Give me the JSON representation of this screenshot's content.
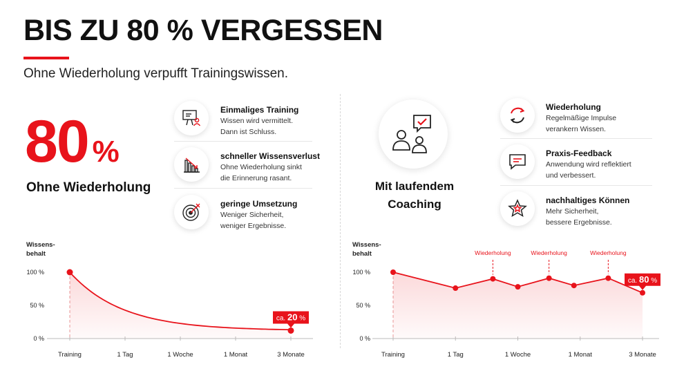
{
  "header": {
    "title": "BIS ZU 80 % VERGESSEN",
    "subtitle": "Ohne Wiederholung verpufft Trainingswissen."
  },
  "colors": {
    "accent": "#e8131b",
    "text": "#111111",
    "muted": "#333333"
  },
  "left": {
    "big_number": "80",
    "big_unit": "%",
    "caption": "Ohne Wiederholung",
    "features": [
      {
        "icon": "presentation-board-icon",
        "title": "Einmaliges Training",
        "desc": [
          "Wissen wird vermittelt.",
          "Dann ist Schluss."
        ]
      },
      {
        "icon": "declining-bar-chart-icon",
        "title": "schneller Wissensverlust",
        "desc": [
          "Ohne Wiederholung sinkt",
          "die Erinnerung rasant."
        ]
      },
      {
        "icon": "target-icon",
        "title": "geringe Umsetzung",
        "desc": [
          "Weniger Sicherheit,",
          "weniger Ergebnisse."
        ]
      }
    ]
  },
  "right": {
    "caption_lines": [
      "Mit laufendem",
      "Coaching"
    ],
    "features": [
      {
        "icon": "refresh-cycle-icon",
        "title": "Wiederholung",
        "desc": [
          "Regelmäßige Impulse",
          "verankern Wissen."
        ]
      },
      {
        "icon": "chat-bubble-icon",
        "title": "Praxis-Feedback",
        "desc": [
          "Anwendung wird reflektiert",
          "und verbessert."
        ]
      },
      {
        "icon": "star-badge-icon",
        "title": "nachhaltiges Können",
        "desc": [
          "Mehr Sicherheit,",
          "bessere Ergebnisse."
        ]
      }
    ]
  },
  "chart_data": [
    {
      "type": "area",
      "ylabel": "Wissens-\nbehalt",
      "yticks": [
        "100 %",
        "50 %",
        "0 %"
      ],
      "ylim": [
        0,
        100
      ],
      "categories": [
        "Training",
        "1 Tag",
        "1 Woche",
        "1 Monat",
        "3 Monate"
      ],
      "points": [
        [
          0,
          100
        ],
        [
          4,
          12
        ]
      ],
      "curve": "exponential-decay",
      "callout": {
        "prefix": "ca.",
        "value": "20",
        "unit": "%"
      }
    },
    {
      "type": "line",
      "ylabel": "Wissens-\nbehalt",
      "yticks": [
        "100 %",
        "50 %",
        "0 %"
      ],
      "ylim": [
        0,
        100
      ],
      "categories": [
        "Training",
        "1 Tag",
        "1 Woche",
        "1 Monat",
        "3 Monate"
      ],
      "x": [
        0,
        1,
        1.6,
        2,
        2.5,
        2.9,
        3.45,
        4
      ],
      "y": [
        100,
        76,
        90,
        78,
        91,
        80,
        91,
        69
      ],
      "annotations": [
        {
          "label": "Wiederholung",
          "point_index": 2
        },
        {
          "label": "Wiederholung",
          "point_index": 4
        },
        {
          "label": "Wiederholung",
          "point_index": 6
        }
      ],
      "callout": {
        "prefix": "ca.",
        "value": "80",
        "unit": "%"
      }
    }
  ]
}
